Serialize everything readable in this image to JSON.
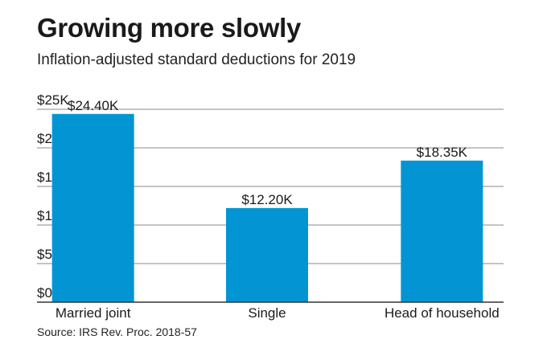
{
  "title": "Growing more slowly",
  "subtitle": "Inflation-adjusted standard deductions for 2019",
  "source": "Source: IRS Rev. Proc. 2018-57",
  "colors": {
    "bar": "#0395d3",
    "grid": "#8a8a8a",
    "axis": "#333333"
  },
  "chart_data": {
    "type": "bar",
    "categories": [
      "Married joint",
      "Single",
      "Head of household"
    ],
    "values": [
      24400,
      12200,
      18350
    ],
    "data_labels": [
      "$24.40K",
      "$12.20K",
      "$18.35K"
    ],
    "ylim": [
      0,
      25000
    ],
    "y_ticks": [
      0,
      5000,
      10000,
      15000,
      20000,
      25000
    ],
    "y_tick_labels": [
      "$0",
      "$5K",
      "$10K",
      "$15K",
      "$20K",
      "$25K"
    ],
    "grid": true,
    "xlabel": "",
    "ylabel": ""
  }
}
